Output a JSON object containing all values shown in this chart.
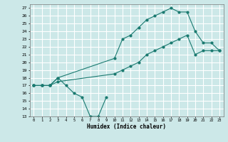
{
  "title": "",
  "xlabel": "Humidex (Indice chaleur)",
  "xlim": [
    -0.5,
    23.5
  ],
  "ylim": [
    13,
    27.5
  ],
  "yticks": [
    13,
    14,
    15,
    16,
    17,
    18,
    19,
    20,
    21,
    22,
    23,
    24,
    25,
    26,
    27
  ],
  "xticks": [
    0,
    1,
    2,
    3,
    4,
    5,
    6,
    7,
    8,
    9,
    10,
    11,
    12,
    13,
    14,
    15,
    16,
    17,
    18,
    19,
    20,
    21,
    22,
    23
  ],
  "bg_color": "#cce8e8",
  "grid_color": "#ffffff",
  "line_color": "#1a7a70",
  "line1_x": [
    0,
    1,
    2,
    3,
    4,
    5,
    6,
    7,
    8,
    9
  ],
  "line1_y": [
    17,
    17,
    17,
    18,
    17,
    16,
    15.5,
    13,
    13,
    15.5
  ],
  "line2_x": [
    0,
    1,
    2,
    3,
    10,
    11,
    12,
    13,
    14,
    15,
    16,
    17,
    18,
    19,
    20,
    21,
    22,
    23
  ],
  "line2_y": [
    17,
    17,
    17,
    18,
    20.5,
    23,
    23.5,
    24.5,
    25.5,
    26,
    26.5,
    27,
    26.5,
    26.5,
    24,
    22.5,
    22.5,
    21.5
  ],
  "line3_x": [
    0,
    1,
    2,
    3,
    10,
    11,
    12,
    13,
    14,
    15,
    16,
    17,
    18,
    19,
    20,
    21,
    22,
    23
  ],
  "line3_y": [
    17,
    17,
    17,
    17.5,
    18.5,
    19,
    19.5,
    20,
    21,
    21.5,
    22,
    22.5,
    23,
    23.5,
    21,
    21.5,
    21.5,
    21.5
  ]
}
